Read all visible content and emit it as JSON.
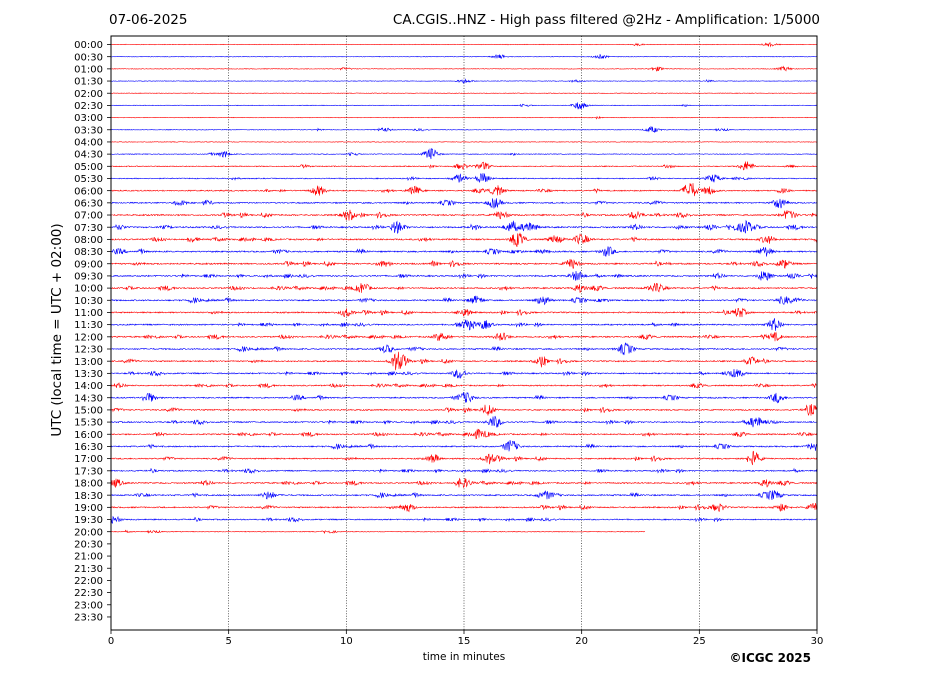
{
  "header": {
    "date": "07-06-2025",
    "title": "CA.CGIS..HNZ - High pass filtered @2Hz - Amplification: 1/5000"
  },
  "footer": {
    "copyright": "©ICGC 2025"
  },
  "chart_data": {
    "type": "line",
    "title": "CA.CGIS..HNZ - High pass filtered @2Hz - Amplification: 1/5000",
    "xlabel": "time in minutes",
    "ylabel": "UTC (local time = UTC + 02:00)",
    "xlim": [
      0,
      30
    ],
    "xticks": [
      0,
      5,
      10,
      15,
      20,
      25,
      30
    ],
    "vertical_grid": "dotted at x ticks",
    "row_labels": [
      "00:00",
      "00:30",
      "01:00",
      "01:30",
      "02:00",
      "02:30",
      "03:00",
      "03:30",
      "04:00",
      "04:30",
      "05:00",
      "05:30",
      "06:00",
      "06:30",
      "07:00",
      "07:30",
      "08:00",
      "08:30",
      "09:00",
      "09:30",
      "10:00",
      "10:30",
      "11:00",
      "11:30",
      "12:00",
      "12:30",
      "13:00",
      "13:30",
      "14:00",
      "14:30",
      "15:00",
      "15:30",
      "16:00",
      "16:30",
      "17:00",
      "17:30",
      "18:00",
      "18:30",
      "19:00",
      "19:30",
      "20:00",
      "20:30",
      "21:00",
      "21:30",
      "22:00",
      "22:30",
      "23:00",
      "23:30"
    ],
    "colors": [
      "#ff0000",
      "#0000ff"
    ],
    "color_rule": "alternating by row starting with red",
    "recorded_until": {
      "row": "20:00",
      "minute": 22.7
    },
    "row_activity": [
      0.05,
      0.05,
      0.05,
      0.06,
      0.06,
      0.06,
      0.06,
      0.08,
      0.1,
      0.2,
      0.35,
      0.45,
      0.6,
      0.7,
      0.8,
      0.85,
      0.85,
      0.8,
      0.85,
      0.8,
      0.8,
      0.75,
      0.75,
      0.75,
      0.75,
      0.7,
      0.7,
      0.7,
      0.65,
      0.7,
      0.7,
      0.7,
      0.7,
      0.7,
      0.7,
      0.65,
      0.7,
      0.7,
      0.7,
      0.6,
      0.15
    ],
    "bursts": [
      {
        "row": "00:00",
        "minute": 28.0,
        "amp": 2
      },
      {
        "row": "00:30",
        "minute": 16.5,
        "amp": 2
      },
      {
        "row": "00:30",
        "minute": 20.8,
        "amp": 2
      },
      {
        "row": "01:00",
        "minute": 23.2,
        "amp": 2
      },
      {
        "row": "01:00",
        "minute": 28.6,
        "amp": 2
      },
      {
        "row": "01:30",
        "minute": 15.0,
        "amp": 2
      },
      {
        "row": "02:30",
        "minute": 19.9,
        "amp": 4
      },
      {
        "row": "03:30",
        "minute": 11.6,
        "amp": 2
      },
      {
        "row": "03:30",
        "minute": 23.0,
        "amp": 3
      },
      {
        "row": "04:30",
        "minute": 4.8,
        "amp": 3
      },
      {
        "row": "04:30",
        "minute": 13.6,
        "amp": 6
      },
      {
        "row": "05:00",
        "minute": 14.9,
        "amp": 3
      },
      {
        "row": "05:00",
        "minute": 15.8,
        "amp": 4
      },
      {
        "row": "05:00",
        "minute": 27.0,
        "amp": 5
      },
      {
        "row": "05:30",
        "minute": 14.8,
        "amp": 4
      },
      {
        "row": "05:30",
        "minute": 15.8,
        "amp": 5
      },
      {
        "row": "05:30",
        "minute": 25.6,
        "amp": 4
      },
      {
        "row": "06:00",
        "minute": 8.8,
        "amp": 5
      },
      {
        "row": "06:00",
        "minute": 12.9,
        "amp": 4
      },
      {
        "row": "06:00",
        "minute": 16.4,
        "amp": 5
      },
      {
        "row": "06:00",
        "minute": 24.6,
        "amp": 9
      },
      {
        "row": "06:00",
        "minute": 25.4,
        "amp": 4
      },
      {
        "row": "06:30",
        "minute": 16.3,
        "amp": 5
      },
      {
        "row": "06:30",
        "minute": 28.4,
        "amp": 5
      },
      {
        "row": "07:00",
        "minute": 10.1,
        "amp": 5
      },
      {
        "row": "07:00",
        "minute": 16.6,
        "amp": 4
      },
      {
        "row": "07:00",
        "minute": 22.3,
        "amp": 4
      },
      {
        "row": "07:00",
        "minute": 28.8,
        "amp": 5
      },
      {
        "row": "07:30",
        "minute": 12.2,
        "amp": 5
      },
      {
        "row": "07:30",
        "minute": 17.0,
        "amp": 5
      },
      {
        "row": "07:30",
        "minute": 17.7,
        "amp": 5
      },
      {
        "row": "07:30",
        "minute": 27.0,
        "amp": 6
      },
      {
        "row": "08:00",
        "minute": 17.3,
        "amp": 5
      },
      {
        "row": "08:00",
        "minute": 18.9,
        "amp": 4
      },
      {
        "row": "08:00",
        "minute": 20.0,
        "amp": 4
      },
      {
        "row": "08:00",
        "minute": 27.9,
        "amp": 4
      },
      {
        "row": "08:30",
        "minute": 21.1,
        "amp": 5
      },
      {
        "row": "08:30",
        "minute": 27.8,
        "amp": 5
      },
      {
        "row": "09:00",
        "minute": 19.6,
        "amp": 5
      },
      {
        "row": "09:00",
        "minute": 28.6,
        "amp": 4
      },
      {
        "row": "09:30",
        "minute": 19.8,
        "amp": 5
      },
      {
        "row": "09:30",
        "minute": 27.8,
        "amp": 4
      },
      {
        "row": "10:00",
        "minute": 10.7,
        "amp": 5
      },
      {
        "row": "10:00",
        "minute": 19.9,
        "amp": 4
      },
      {
        "row": "10:00",
        "minute": 23.1,
        "amp": 4
      },
      {
        "row": "10:30",
        "minute": 15.5,
        "amp": 4
      },
      {
        "row": "10:30",
        "minute": 18.4,
        "amp": 4
      },
      {
        "row": "10:30",
        "minute": 28.6,
        "amp": 4
      },
      {
        "row": "11:00",
        "minute": 10.0,
        "amp": 4
      },
      {
        "row": "11:00",
        "minute": 15.0,
        "amp": 4
      },
      {
        "row": "11:00",
        "minute": 26.7,
        "amp": 5
      },
      {
        "row": "11:30",
        "minute": 15.2,
        "amp": 5
      },
      {
        "row": "11:30",
        "minute": 15.9,
        "amp": 4
      },
      {
        "row": "11:30",
        "minute": 28.2,
        "amp": 4
      },
      {
        "row": "12:00",
        "minute": 14.0,
        "amp": 4
      },
      {
        "row": "12:00",
        "minute": 16.6,
        "amp": 4
      },
      {
        "row": "12:00",
        "minute": 28.2,
        "amp": 4
      },
      {
        "row": "12:30",
        "minute": 11.7,
        "amp": 4
      },
      {
        "row": "12:30",
        "minute": 21.8,
        "amp": 4
      },
      {
        "row": "13:00",
        "minute": 12.2,
        "amp": 10
      },
      {
        "row": "13:00",
        "minute": 18.3,
        "amp": 4
      },
      {
        "row": "13:00",
        "minute": 27.2,
        "amp": 4
      },
      {
        "row": "13:30",
        "minute": 14.8,
        "amp": 5
      },
      {
        "row": "13:30",
        "minute": 26.6,
        "amp": 4
      },
      {
        "row": "14:30",
        "minute": 1.6,
        "amp": 5
      },
      {
        "row": "14:30",
        "minute": 15.1,
        "amp": 5
      },
      {
        "row": "14:30",
        "minute": 28.3,
        "amp": 5
      },
      {
        "row": "15:00",
        "minute": 16.0,
        "amp": 4
      },
      {
        "row": "15:00",
        "minute": 29.8,
        "amp": 5
      },
      {
        "row": "15:30",
        "minute": 16.3,
        "amp": 6
      },
      {
        "row": "15:30",
        "minute": 27.4,
        "amp": 6
      },
      {
        "row": "16:00",
        "minute": 15.7,
        "amp": 5
      },
      {
        "row": "16:30",
        "minute": 17.0,
        "amp": 5
      },
      {
        "row": "16:30",
        "minute": 29.9,
        "amp": 4
      },
      {
        "row": "17:00",
        "minute": 13.7,
        "amp": 4
      },
      {
        "row": "17:00",
        "minute": 16.1,
        "amp": 5
      },
      {
        "row": "17:00",
        "minute": 27.3,
        "amp": 7
      },
      {
        "row": "18:00",
        "minute": 0.2,
        "amp": 4
      },
      {
        "row": "18:00",
        "minute": 14.9,
        "amp": 4
      },
      {
        "row": "18:00",
        "minute": 27.8,
        "amp": 4
      },
      {
        "row": "18:30",
        "minute": 6.7,
        "amp": 4
      },
      {
        "row": "18:30",
        "minute": 18.4,
        "amp": 4
      },
      {
        "row": "18:30",
        "minute": 28.2,
        "amp": 4
      },
      {
        "row": "19:00",
        "minute": 12.6,
        "amp": 4
      },
      {
        "row": "19:00",
        "minute": 25.8,
        "amp": 4
      },
      {
        "row": "19:00",
        "minute": 28.5,
        "amp": 4
      },
      {
        "row": "19:00",
        "minute": 29.9,
        "amp": 4
      },
      {
        "row": "19:30",
        "minute": 0.1,
        "amp": 4
      }
    ]
  }
}
